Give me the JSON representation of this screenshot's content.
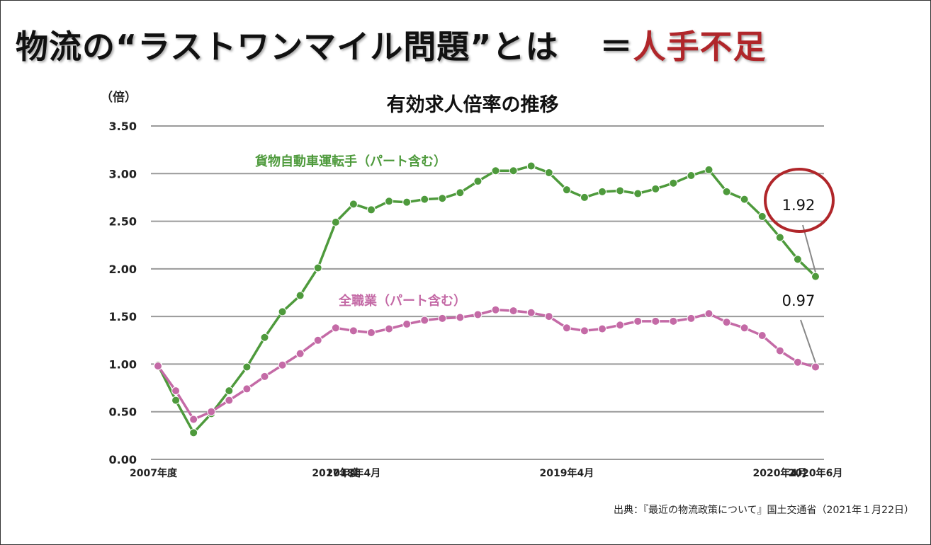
{
  "headline": {
    "main": "物流の“ラストワンマイル問題”とは",
    "equals": "＝",
    "accent": "人手不足"
  },
  "colors": {
    "accent": "#b0262a",
    "truck": "#4e9a3c",
    "all": "#c46aa6",
    "grid": "#9a9a9a"
  },
  "chart_data": {
    "type": "line",
    "title": "有効求人倍率の推移",
    "ylabel": "（倍）",
    "ylim": [
      0,
      3.5
    ],
    "yticks": [
      "0.00",
      "0.50",
      "1.00",
      "1.50",
      "2.00",
      "2.50",
      "3.00",
      "3.50"
    ],
    "x_labels": [
      {
        "index": 0,
        "label": "2007年度"
      },
      {
        "index": 10,
        "label": "2017年度"
      },
      {
        "index": 11,
        "label": "2018年4月"
      },
      {
        "index": 23,
        "label": "2019年4月"
      },
      {
        "index": 35,
        "label": "2020年4月"
      },
      {
        "index": 37,
        "label": "2020年6月"
      }
    ],
    "series": [
      {
        "name": "貨物自動車運転手（パート含む）",
        "color": "#4e9a3c",
        "values": [
          0.99,
          0.62,
          0.28,
          0.48,
          0.72,
          0.97,
          1.28,
          1.55,
          1.72,
          2.01,
          2.49,
          2.68,
          2.62,
          2.71,
          2.7,
          2.73,
          2.74,
          2.8,
          2.92,
          3.03,
          3.03,
          3.08,
          3.01,
          2.83,
          2.75,
          2.81,
          2.82,
          2.79,
          2.84,
          2.9,
          2.98,
          3.04,
          2.81,
          2.73,
          2.55,
          2.33,
          2.1,
          1.92
        ]
      },
      {
        "name": "全職業（パート含む）",
        "color": "#c46aa6",
        "values": [
          0.98,
          0.72,
          0.42,
          0.5,
          0.62,
          0.74,
          0.87,
          0.99,
          1.11,
          1.25,
          1.38,
          1.35,
          1.33,
          1.37,
          1.42,
          1.46,
          1.48,
          1.49,
          1.52,
          1.57,
          1.56,
          1.54,
          1.5,
          1.38,
          1.35,
          1.37,
          1.41,
          1.45,
          1.45,
          1.45,
          1.48,
          1.53,
          1.44,
          1.38,
          1.3,
          1.14,
          1.02,
          0.97
        ]
      }
    ],
    "annotations": [
      {
        "text": "1.92",
        "series": 0,
        "index": 37,
        "circled": true
      },
      {
        "text": "0.97",
        "series": 1,
        "index": 37,
        "circled": false
      }
    ]
  },
  "source": "出典：『最近の物流政策について』国土交通省（2021年１月22日）"
}
